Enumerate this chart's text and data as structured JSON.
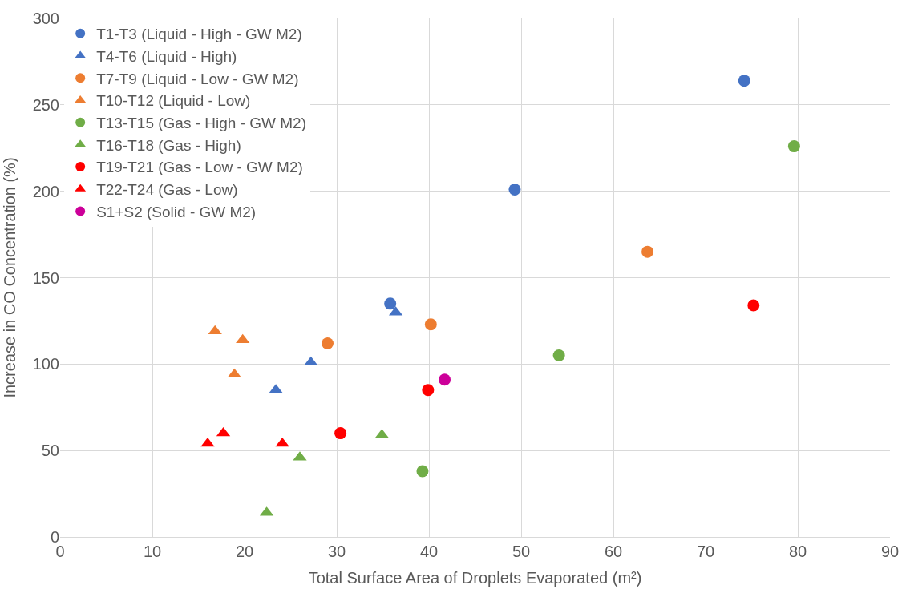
{
  "chart_data": {
    "type": "scatter",
    "xlabel": "Total Surface Area of Droplets Evaporated (m²)",
    "ylabel": "Increase in CO Concentration (%)",
    "xlim": [
      0,
      90
    ],
    "xticks": [
      0,
      10,
      20,
      30,
      40,
      50,
      60,
      70,
      80,
      90
    ],
    "ylim": [
      0,
      300
    ],
    "yticks": [
      0,
      50,
      100,
      150,
      200,
      250,
      300
    ],
    "grid": true,
    "legend": "top left",
    "series": [
      {
        "name": "T1-T3 (Liquid - High - GW M2)",
        "color": "#4472c4",
        "marker": "circle",
        "x": [
          35.8,
          49.3,
          74.2
        ],
        "values": [
          135,
          201,
          264
        ]
      },
      {
        "name": "T4-T6 (Liquid - High)",
        "color": "#4472c4",
        "marker": "triangle",
        "x": [
          23.4,
          27.2,
          36.4
        ],
        "values": [
          85,
          101,
          130
        ]
      },
      {
        "name": "T7-T9 (Liquid - Low - GW M2)",
        "color": "#ed7d31",
        "marker": "circle",
        "x": [
          29.0,
          40.2,
          63.7
        ],
        "values": [
          112,
          123,
          165
        ]
      },
      {
        "name": "T10-T12 (Liquid - Low)",
        "color": "#ed7d31",
        "marker": "triangle",
        "x": [
          16.8,
          18.9,
          19.8
        ],
        "values": [
          119,
          94,
          114
        ]
      },
      {
        "name": "T13-T15 (Gas - High - GW M2)",
        "color": "#70ad47",
        "marker": "circle",
        "x": [
          39.3,
          54.1,
          79.6
        ],
        "values": [
          38,
          105,
          226
        ]
      },
      {
        "name": "T16-T18 (Gas - High)",
        "color": "#70ad47",
        "marker": "triangle",
        "x": [
          22.4,
          26.0,
          34.9
        ],
        "values": [
          14,
          46,
          59
        ]
      },
      {
        "name": "T19-T21 (Gas - Low - GW M2)",
        "color": "#ff0000",
        "marker": "circle",
        "x": [
          30.4,
          39.9,
          75.2
        ],
        "values": [
          60,
          85,
          134
        ]
      },
      {
        "name": "T22-T24 (Gas - Low)",
        "color": "#ff0000",
        "marker": "triangle",
        "x": [
          16.0,
          17.7,
          24.1
        ],
        "values": [
          54,
          60,
          54
        ]
      },
      {
        "name": "S1+S2 (Solid - GW M2)",
        "color": "#cc0099",
        "marker": "circle",
        "x": [
          41.7
        ],
        "values": [
          91
        ]
      }
    ]
  }
}
